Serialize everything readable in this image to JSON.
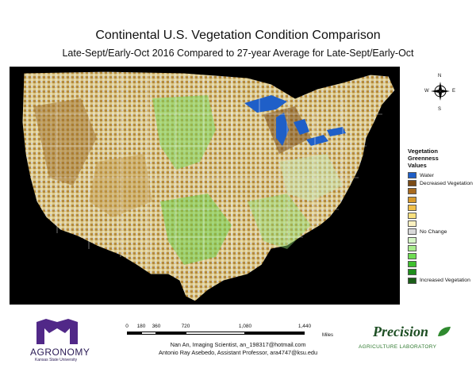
{
  "header": {
    "title": "Continental U.S. Vegetation Condition Comparison",
    "subtitle": "Late-Sept/Early-Oct 2016 Compared to 27-year Average for Late-Sept/Early-Oct"
  },
  "compass": {
    "north": "N",
    "south": "S",
    "east": "E",
    "west": "W"
  },
  "legend": {
    "title_line1": "Vegetation",
    "title_line2": "Greenness",
    "title_line3": "Values",
    "items": [
      {
        "label": "Water",
        "color": "#1f5fc8"
      },
      {
        "label": "Decreased Vegetation",
        "color": "#7a4a16"
      },
      {
        "label": "",
        "color": "#a86a1e"
      },
      {
        "label": "",
        "color": "#d89a2c"
      },
      {
        "label": "",
        "color": "#f0bf4a"
      },
      {
        "label": "",
        "color": "#f8e07e"
      },
      {
        "label": "",
        "color": "#fbf1c0"
      },
      {
        "label": "No Change",
        "color": "#d9d9d9"
      },
      {
        "label": "",
        "color": "#d6f5c6"
      },
      {
        "label": "",
        "color": "#a9ec8e"
      },
      {
        "label": "",
        "color": "#6edc52"
      },
      {
        "label": "",
        "color": "#3fc02e"
      },
      {
        "label": "",
        "color": "#1f8f1c"
      },
      {
        "label": "Increased Vegetation",
        "color": "#1b5e18"
      }
    ]
  },
  "scale": {
    "ticks": [
      "0",
      "180",
      "360",
      "720",
      "1,080",
      "1,440"
    ],
    "unit": "Miles"
  },
  "credits": {
    "line1": "Nan An, Imaging Scientist, an_198317@hotmail.com",
    "line2": "Antonio Ray Asebedo, Assistant Professor, ara4747@ksu.edu"
  },
  "logos": {
    "left_text": "AGRONOMY",
    "left_subtext": "Kansas State University",
    "right_text": "Precision",
    "right_subtext": "AGRICULTURE LABORATORY"
  }
}
